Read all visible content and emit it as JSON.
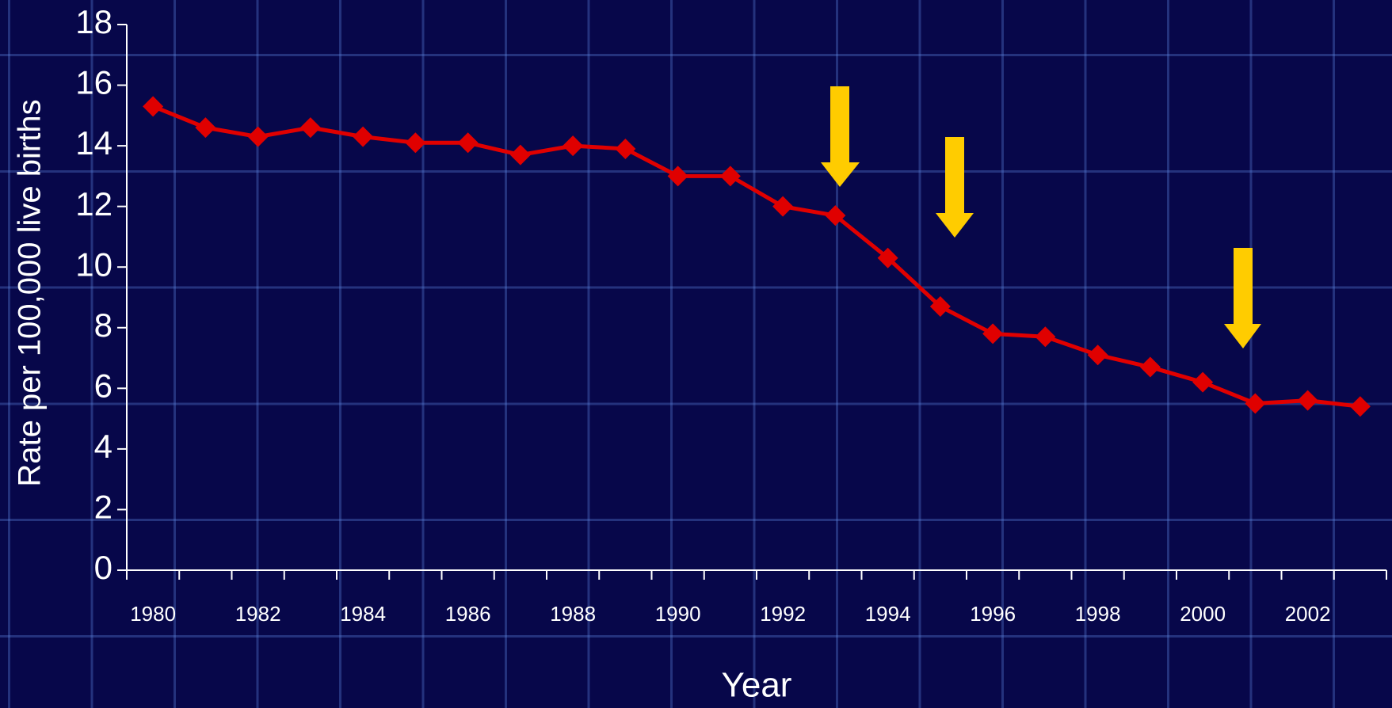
{
  "chart_data": {
    "type": "line",
    "x_label": "Year",
    "y_label": "Rate per 100,000 live births",
    "categories": [
      "1980",
      null,
      "1982",
      null,
      "1984",
      null,
      "1986",
      null,
      "1988",
      null,
      "1990",
      null,
      "1992",
      null,
      "1994",
      null,
      "1996",
      null,
      "1998",
      null,
      "2000",
      null,
      "2002",
      null
    ],
    "series": [
      {
        "color": "#e00000",
        "values": [
          15.3,
          14.6,
          14.3,
          14.6,
          14.3,
          14.1,
          14.1,
          13.7,
          14.0,
          13.9,
          13.0,
          13.0,
          12.0,
          11.7,
          10.3,
          8.7,
          7.8,
          7.7,
          7.1,
          6.7,
          6.2,
          5.5,
          5.6,
          5.4
        ]
      }
    ],
    "ylim": [
      0,
      18
    ],
    "yticks": [
      0,
      2,
      4,
      6,
      8,
      10,
      12,
      14,
      16,
      18
    ]
  }
}
